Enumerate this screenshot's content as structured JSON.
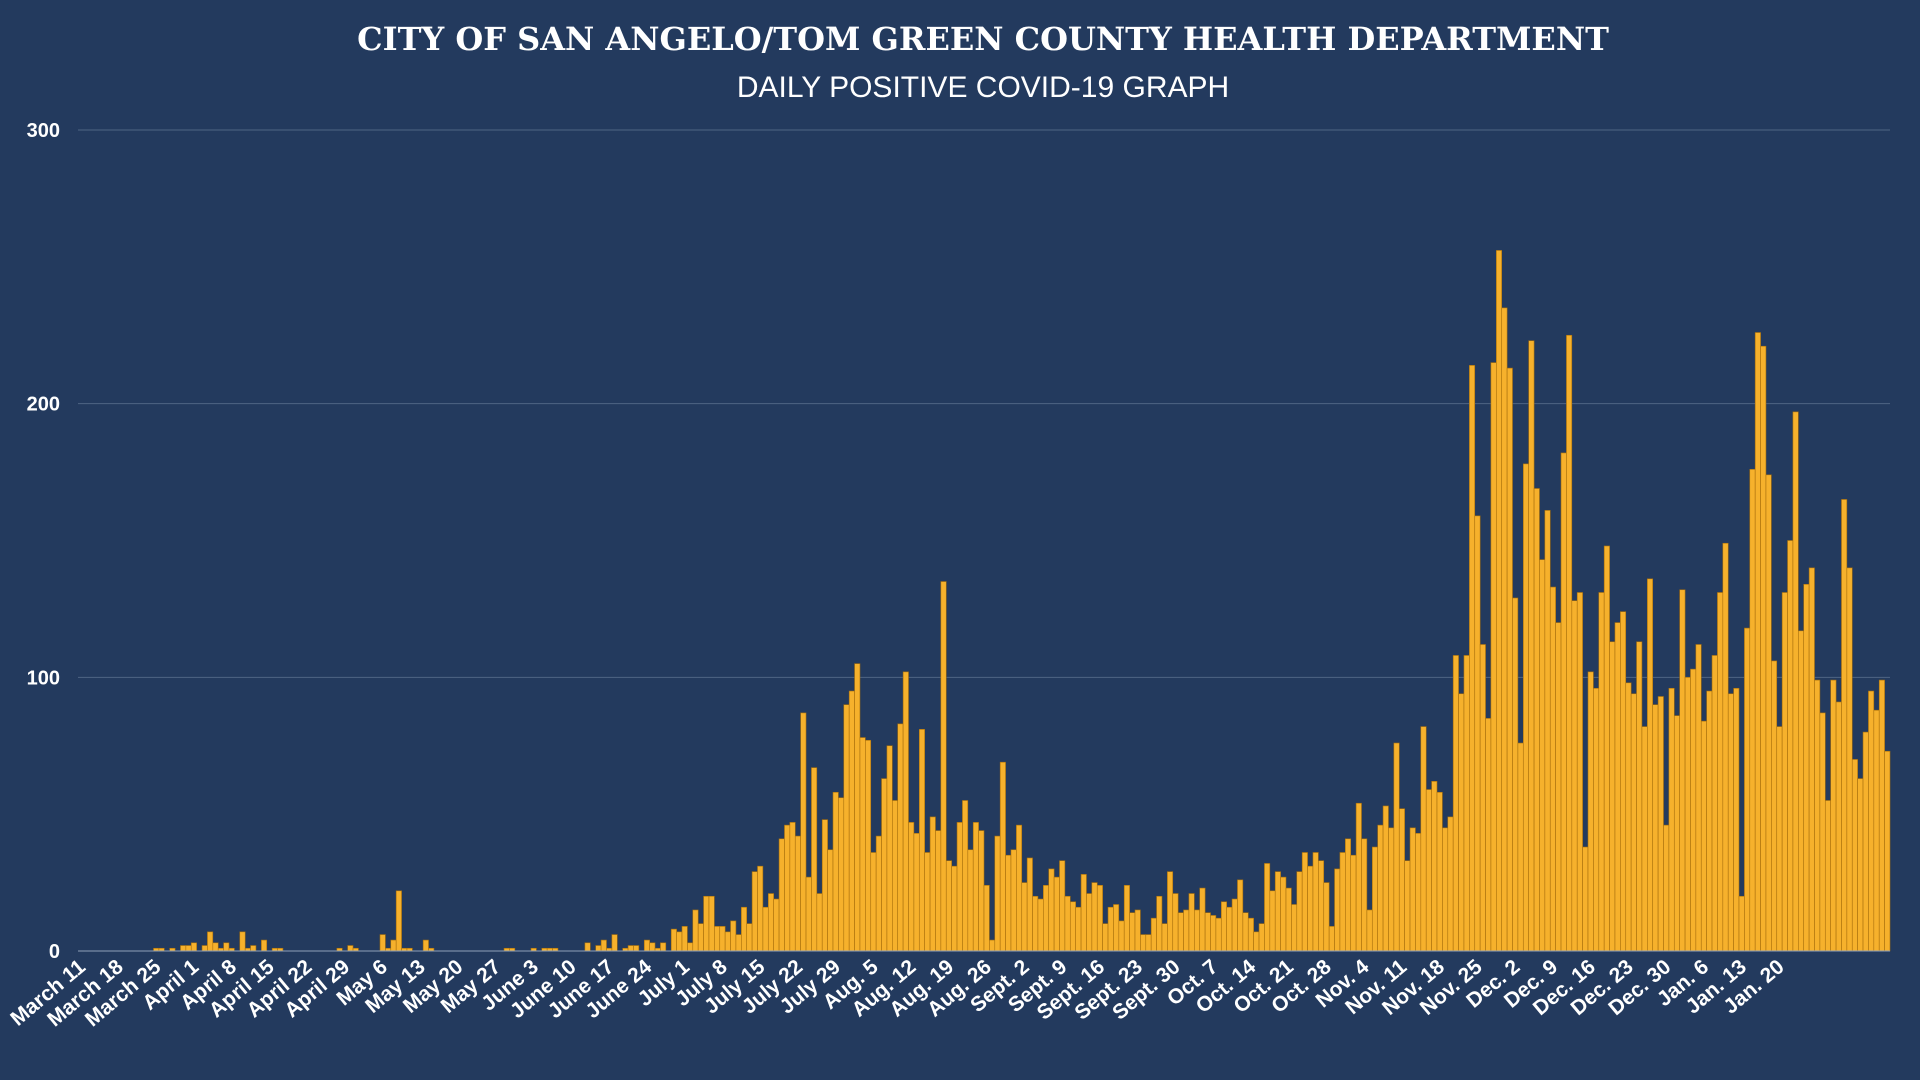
{
  "colors": {
    "background": "#233a5e",
    "bar": "#f6b12c",
    "bar_edge": "#a86f0c",
    "text": "#ffffff",
    "grid": "#4f6584"
  },
  "chart_data": {
    "type": "bar",
    "title": "CITY OF SAN ANGELO/TOM GREEN COUNTY HEALTH DEPARTMENT",
    "subtitle": "DAILY POSITIVE COVID-19 GRAPH",
    "xlabel": "",
    "ylabel": "",
    "ylim": [
      0,
      300
    ],
    "yticks": [
      0,
      100,
      200,
      300
    ],
    "grid": true,
    "legend": "none",
    "x_tick_labels": [
      "March 11",
      "March 18",
      "March 25",
      "April 1",
      "April 8",
      "April 15",
      "April 22",
      "April 29",
      "May 6",
      "May 13",
      "May 20",
      "May 27",
      "June 3",
      "June 10",
      "June 17",
      "June 24",
      "July 1",
      "July 8",
      "July 15",
      "July 22",
      "July 29",
      "Aug. 5",
      "Aug. 12",
      "Aug. 19",
      "Aug. 26",
      "Sept. 2",
      "Sept. 9",
      "Sept. 16",
      "Sept. 23",
      "Sept. 30",
      "Oct. 7",
      "Oct. 14",
      "Oct. 21",
      "Oct. 28",
      "Nov. 4",
      "Nov. 11",
      "Nov. 18",
      "Nov. 25",
      "Dec. 2",
      "Dec. 9",
      "Dec. 16",
      "Dec. 23",
      "Dec. 30",
      "Jan. 6",
      "Jan. 13",
      "Jan. 20"
    ],
    "start_label": "March 11",
    "values": [
      0,
      0,
      0,
      0,
      0,
      0,
      0,
      0,
      0,
      0,
      0,
      0,
      0,
      0,
      1,
      1,
      0,
      1,
      0,
      2,
      2,
      3,
      0,
      2,
      7,
      3,
      1,
      3,
      1,
      0,
      7,
      1,
      2,
      0,
      4,
      0,
      1,
      1,
      0,
      0,
      0,
      0,
      0,
      0,
      0,
      0,
      0,
      0,
      1,
      0,
      2,
      1,
      0,
      0,
      0,
      0,
      6,
      1,
      4,
      22,
      1,
      1,
      0,
      0,
      4,
      1,
      0,
      0,
      0,
      0,
      0,
      0,
      0,
      0,
      0,
      0,
      0,
      0,
      0,
      1,
      1,
      0,
      0,
      0,
      1,
      0,
      1,
      1,
      1,
      0,
      0,
      0,
      0,
      0,
      3,
      0,
      2,
      4,
      1,
      6,
      0,
      1,
      2,
      2,
      0,
      4,
      3,
      1,
      3,
      0,
      8,
      7,
      9,
      3,
      15,
      10,
      20,
      20,
      9,
      9,
      7,
      11,
      6,
      16,
      10,
      29,
      31,
      16,
      21,
      19,
      41,
      46,
      47,
      42,
      87,
      27,
      67,
      21,
      48,
      37,
      58,
      56,
      90,
      95,
      105,
      78,
      77,
      36,
      42,
      63,
      75,
      55,
      83,
      102,
      47,
      43,
      81,
      36,
      49,
      44,
      135,
      33,
      31,
      47,
      55,
      37,
      47,
      44,
      24,
      4,
      42,
      69,
      35,
      37,
      46,
      25,
      34,
      20,
      19,
      24,
      30,
      27,
      33,
      20,
      18,
      16,
      28,
      21,
      25,
      24,
      10,
      16,
      17,
      11,
      24,
      14,
      15,
      6,
      6,
      12,
      20,
      10,
      29,
      21,
      14,
      15,
      21,
      15,
      23,
      14,
      13,
      12,
      18,
      16,
      19,
      26,
      14,
      12,
      7,
      10,
      32,
      22,
      29,
      27,
      23,
      17,
      29,
      36,
      31,
      36,
      33,
      25,
      9,
      30,
      36,
      41,
      35,
      54,
      41,
      15,
      38,
      46,
      53,
      45,
      76,
      52,
      33,
      45,
      43,
      82,
      59,
      62,
      58,
      45,
      49,
      108,
      94,
      108,
      214,
      159,
      112,
      85,
      215,
      256,
      235,
      213,
      129,
      76,
      178,
      223,
      169,
      143,
      161,
      133,
      120,
      182,
      225,
      128,
      131,
      38,
      102,
      96,
      131,
      148,
      113,
      120,
      124,
      98,
      94,
      113,
      82,
      136,
      90,
      93,
      46,
      96,
      86,
      132,
      100,
      103,
      112,
      84,
      95,
      108,
      131,
      149,
      94,
      96,
      20,
      118,
      176,
      226,
      221,
      174,
      106,
      82,
      131,
      150,
      197,
      117,
      134,
      140,
      99,
      87,
      55,
      99,
      91,
      165,
      140,
      70,
      63,
      80,
      95,
      88,
      99,
      73
    ]
  }
}
